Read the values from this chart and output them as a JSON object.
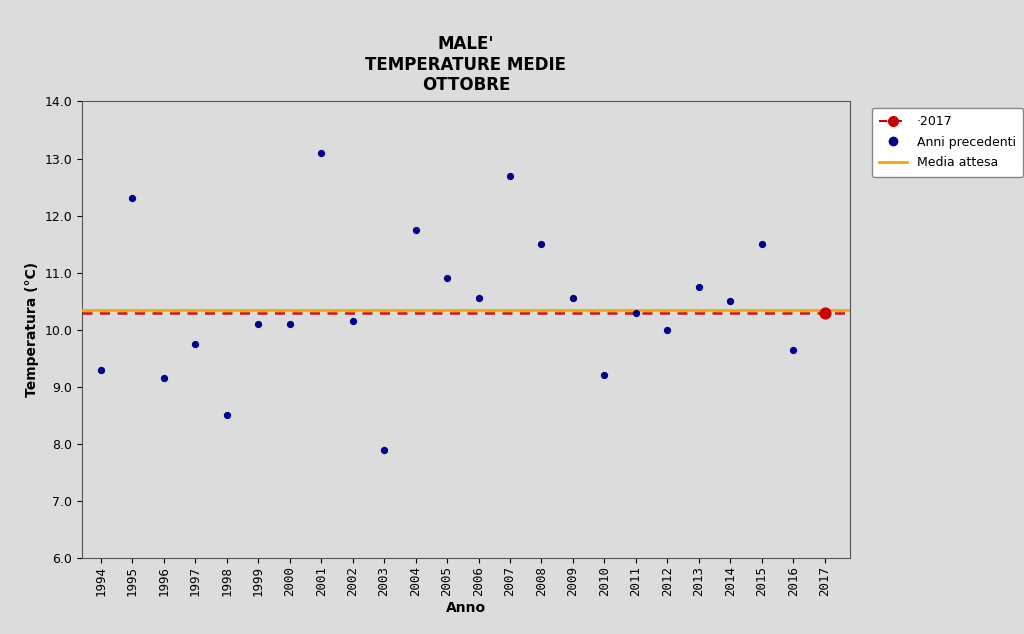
{
  "title_line1": "MALE'",
  "title_line2": "TEMPERATURE MEDIE",
  "title_line3": "OTTOBRE",
  "xlabel": "Anno",
  "ylabel": "Temperatura (°C)",
  "background_color": "#dcdcdc",
  "plot_bg_color": "#dcdcdc",
  "ylim": [
    6.0,
    14.0
  ],
  "yticks": [
    6.0,
    7.0,
    8.0,
    9.0,
    10.0,
    11.0,
    12.0,
    13.0,
    14.0
  ],
  "years_prev": [
    1994,
    1995,
    1996,
    1997,
    1998,
    1999,
    2000,
    2001,
    2002,
    2003,
    2004,
    2005,
    2006,
    2007,
    2008,
    2009,
    2010,
    2011,
    2012,
    2013,
    2014,
    2015,
    2016
  ],
  "temps_prev": [
    9.3,
    12.3,
    9.15,
    9.75,
    8.5,
    10.1,
    10.1,
    13.1,
    10.15,
    7.9,
    11.75,
    10.9,
    10.55,
    12.7,
    11.5,
    10.55,
    9.2,
    10.3,
    10.0,
    10.75,
    10.5,
    11.5,
    9.65
  ],
  "year_2017": 2017,
  "temp_2017": 10.3,
  "media_attesa": 10.35,
  "dot_color_prev": "#00008B",
  "dot_color_2017": "#CC0000",
  "line_2017_color": "#CC0000",
  "media_line_color": "#FFA500",
  "legend_2017": "·2017",
  "legend_prev": "Anni precedenti",
  "legend_media": "Media attesa",
  "title_fontsize": 12,
  "axis_label_fontsize": 10,
  "tick_fontsize": 9,
  "dot_size_prev": 18,
  "dot_size_2017": 60,
  "xlim_left": 1993.4,
  "xlim_right": 2017.8
}
